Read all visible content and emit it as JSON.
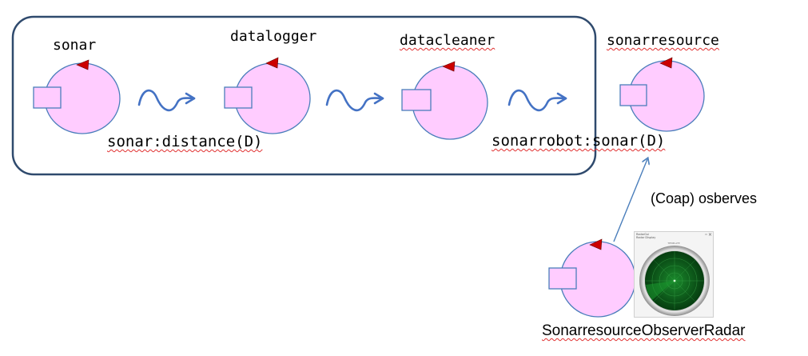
{
  "diagram": {
    "context_actors": [
      {
        "id": "sonar",
        "name": "sonar"
      },
      {
        "id": "datalogger",
        "name": "datalogger"
      },
      {
        "id": "datacleaner",
        "name": "datacleaner"
      }
    ],
    "external_actors": [
      {
        "id": "sonarresource",
        "name": "sonarresource"
      },
      {
        "id": "observer",
        "name": "SonarresourceObserverRadar"
      }
    ],
    "messages": [
      {
        "id": "msg-distance",
        "label": "sonar:distance(D)"
      },
      {
        "id": "msg-sonarrobot",
        "label": "sonarrobot:sonar(D)"
      }
    ],
    "observe_label": "(Coap) osberves",
    "colors": {
      "context_border": "#2f4a6d",
      "actor_fill": "#ffccff",
      "actor_stroke": "#4a7ebb",
      "port_fill": "#ffccff",
      "state_marker": "#cc0000",
      "flow_arrow": "#4472c4",
      "observe_arrow": "#4a7ebb",
      "radar_green": "#0d6b1e"
    },
    "thumbnail": {
      "window_title": "RadarGui",
      "subtitle": "Radar Display",
      "center_label": "TEMPLATE",
      "icon": "radar-screen-icon"
    }
  }
}
